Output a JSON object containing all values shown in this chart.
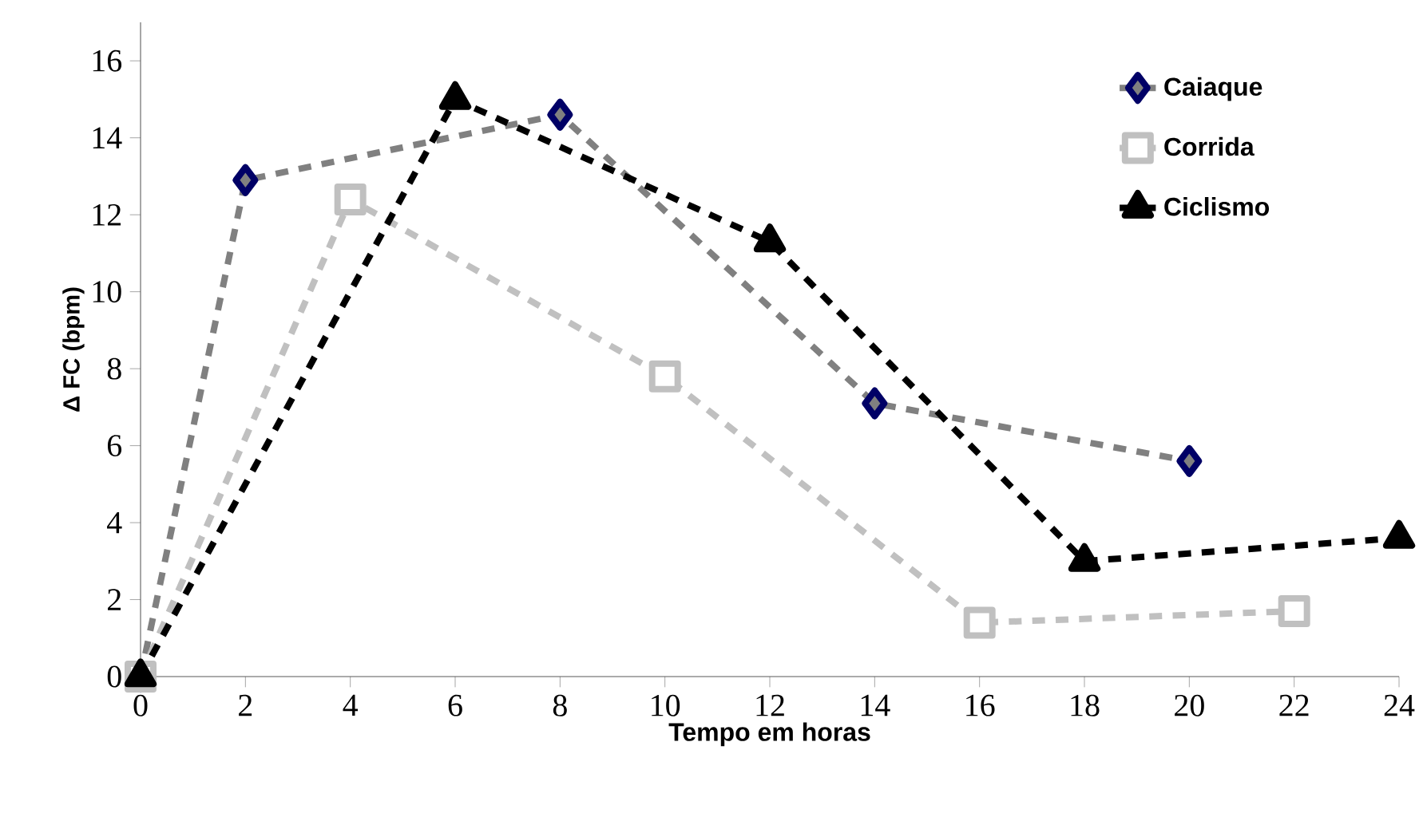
{
  "chart_data": {
    "type": "line",
    "xlabel": "Tempo em horas",
    "ylabel": "Δ FC (bpm)",
    "xlim": [
      0,
      24
    ],
    "ylim": [
      0,
      17
    ],
    "xticks": [
      0,
      2,
      4,
      6,
      8,
      10,
      12,
      14,
      16,
      18,
      20,
      22,
      24
    ],
    "yticks": [
      0,
      2,
      4,
      6,
      8,
      10,
      12,
      14,
      16
    ],
    "legend": "right",
    "line_style": "dashed",
    "grid": false,
    "series": [
      {
        "name": "Caiaque",
        "color": "#808080",
        "marker": "diamond",
        "x": [
          0,
          2,
          8,
          14,
          20
        ],
        "values": [
          0,
          12.9,
          14.6,
          7.1,
          5.6
        ]
      },
      {
        "name": "Corrida",
        "color": "#c0c0c0",
        "marker": "square",
        "x": [
          0,
          4,
          10,
          16,
          22
        ],
        "values": [
          0,
          12.4,
          7.8,
          1.4,
          1.7
        ]
      },
      {
        "name": "Ciclismo",
        "color": "#000000",
        "marker": "triangle",
        "x": [
          0,
          6,
          12,
          18,
          24
        ],
        "values": [
          0,
          15.0,
          11.3,
          3.0,
          3.6
        ]
      }
    ]
  }
}
